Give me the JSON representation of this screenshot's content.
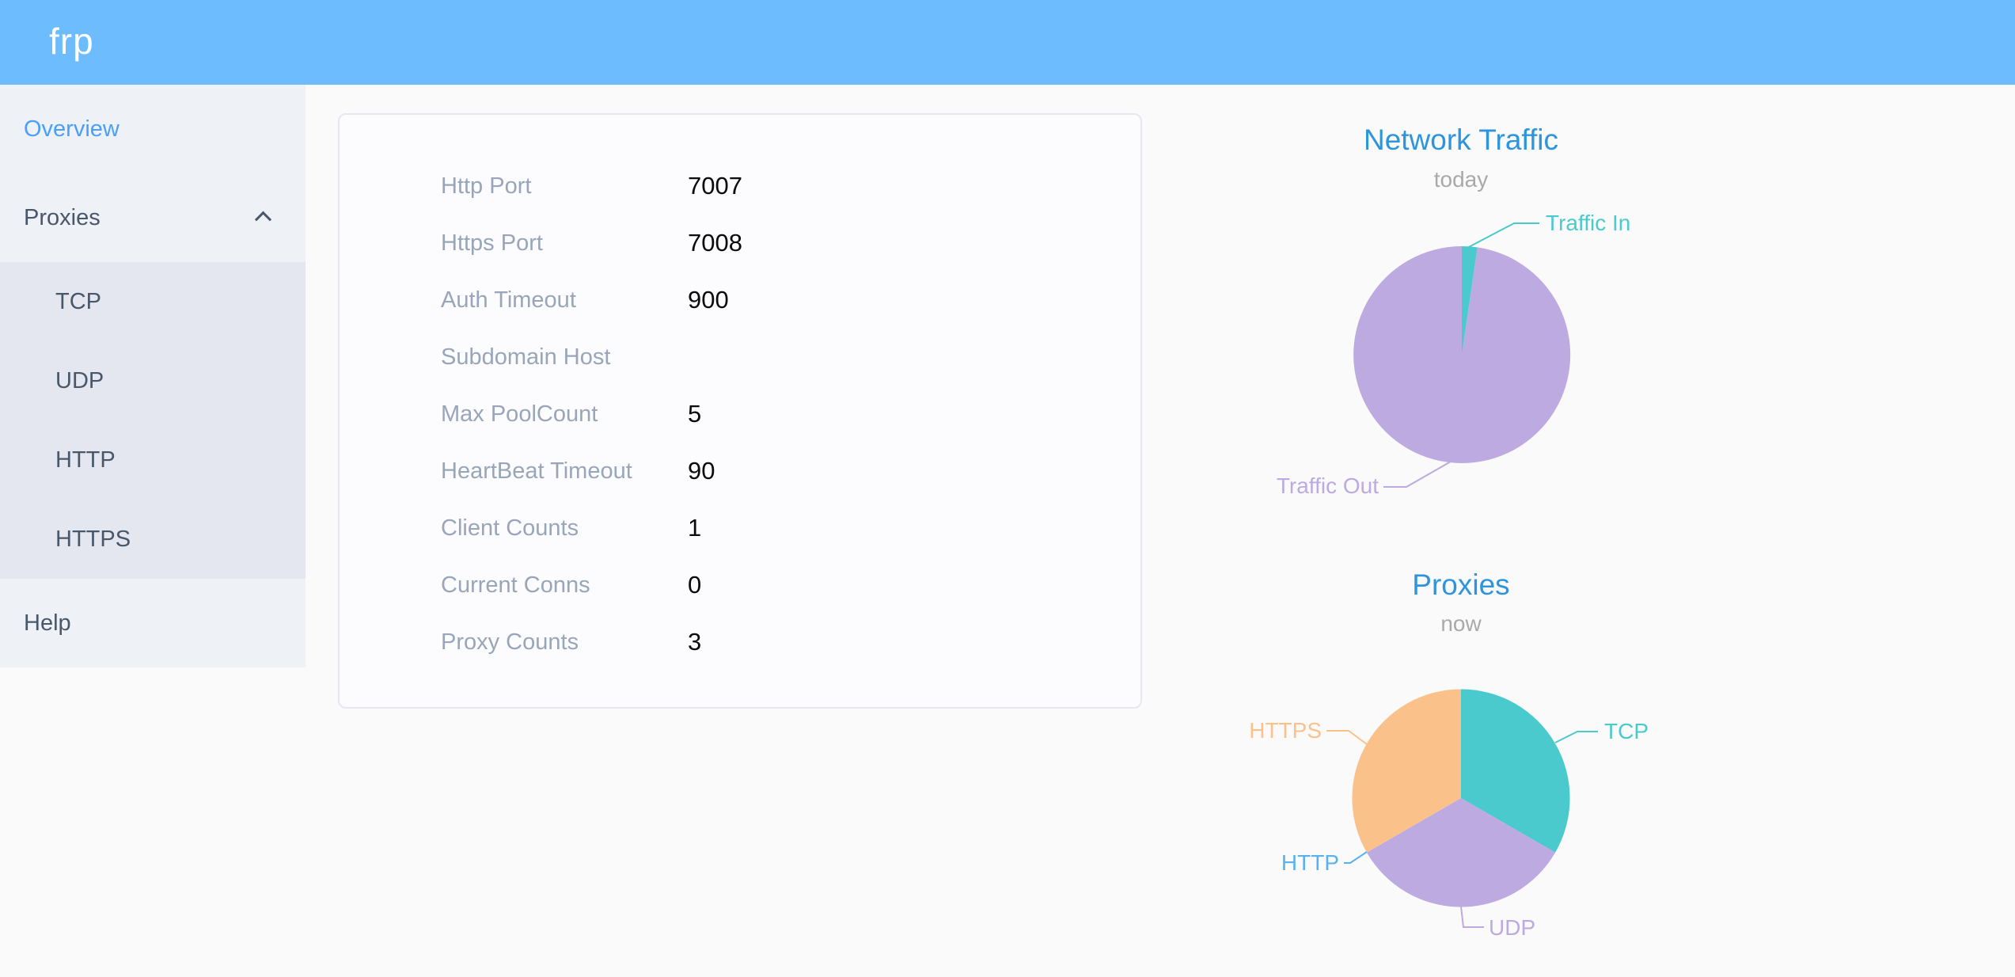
{
  "header": {
    "logo": "frp"
  },
  "sidebar": {
    "items": [
      {
        "label": "Overview",
        "active": true
      },
      {
        "label": "Proxies",
        "expanded": true,
        "children": [
          "TCP",
          "UDP",
          "HTTP",
          "HTTPS"
        ]
      },
      {
        "label": "Help"
      }
    ]
  },
  "overview": {
    "rows": [
      {
        "label": "Http Port",
        "value": "7007"
      },
      {
        "label": "Https Port",
        "value": "7008"
      },
      {
        "label": "Auth Timeout",
        "value": "900"
      },
      {
        "label": "Subdomain Host",
        "value": ""
      },
      {
        "label": "Max PoolCount",
        "value": "5"
      },
      {
        "label": "HeartBeat Timeout",
        "value": "90"
      },
      {
        "label": "Client Counts",
        "value": "1"
      },
      {
        "label": "Current Conns",
        "value": "0"
      },
      {
        "label": "Proxy Counts",
        "value": "3"
      }
    ]
  },
  "chart_data": [
    {
      "type": "pie",
      "title": "Network Traffic",
      "subtitle": "today",
      "legend_position": "labels-with-leader-lines",
      "slices": [
        {
          "label": "Traffic In",
          "value": 2.3,
          "color": "#4acacd"
        },
        {
          "label": "Traffic Out",
          "value": 97.7,
          "color": "#bcaae1"
        }
      ]
    },
    {
      "type": "pie",
      "title": "Proxies",
      "subtitle": "now",
      "legend_position": "labels-with-leader-lines",
      "slices": [
        {
          "label": "TCP",
          "value": 1,
          "color": "#4acacd"
        },
        {
          "label": "UDP",
          "value": 1,
          "color": "#bcaae1"
        },
        {
          "label": "HTTP",
          "value": 0,
          "color": "#5ab1ef"
        },
        {
          "label": "HTTPS",
          "value": 1,
          "color": "#fac28a"
        }
      ]
    }
  ],
  "colors": {
    "header_bg": "#6dbcfe",
    "sidebar_bg": "#eef1f6",
    "submenu_bg": "#e4e7f0",
    "sidebar_text": "#48576a",
    "active_item": "#4aa0f8",
    "chart_title": "#2e94dc",
    "panel_label": "#99a5b8",
    "panel_value": "#0b0b0b"
  }
}
